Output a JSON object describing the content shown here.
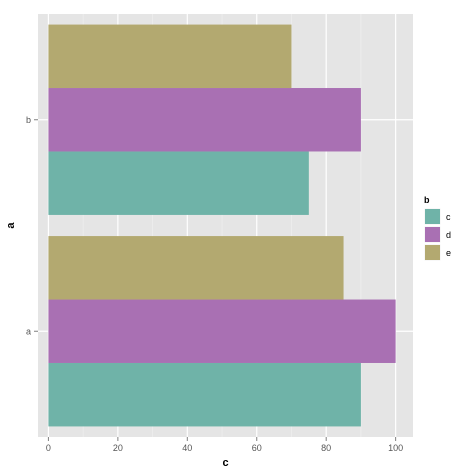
{
  "chart_data": {
    "type": "bar",
    "orientation": "horizontal",
    "grouped": true,
    "categories": [
      "a",
      "b"
    ],
    "series": [
      {
        "name": "c",
        "values": [
          90,
          75
        ],
        "color": "#6FB3A8"
      },
      {
        "name": "d",
        "values": [
          100,
          90
        ],
        "color": "#A970B3"
      },
      {
        "name": "e",
        "values": [
          85,
          70
        ],
        "color": "#B3A970"
      }
    ],
    "xticks": [
      0,
      20,
      40,
      60,
      80,
      100
    ],
    "xlim": [
      -3,
      105
    ],
    "xlabel": "c",
    "ylabel": "a",
    "legend_title": "b",
    "legend_position": "right",
    "grid": true,
    "panel_background": "#E5E5E5",
    "grid_color": "#FFFFFF"
  }
}
